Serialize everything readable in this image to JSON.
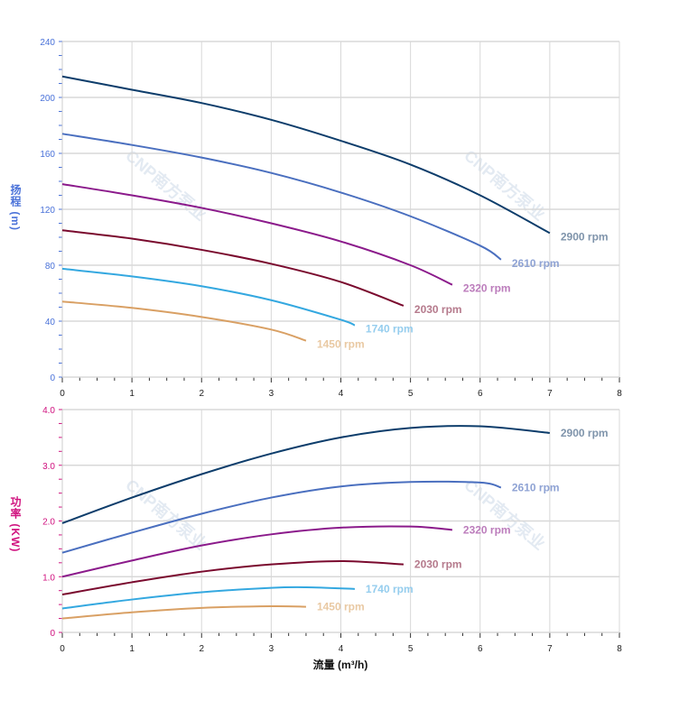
{
  "watermark": "CNP南方泵业",
  "chart_data": [
    {
      "type": "line",
      "ylabel": "扬程 (m)",
      "xlim": [
        0,
        8
      ],
      "ylim": [
        0,
        240
      ],
      "xticks": [
        "0",
        "1",
        "2",
        "3",
        "4",
        "5",
        "6",
        "7",
        "8"
      ],
      "yticks": [
        "0",
        "40",
        "80",
        "120",
        "160",
        "200",
        "240"
      ],
      "grid": true,
      "series": [
        {
          "name": "2900 rpm",
          "color": "#0d3d6b",
          "label_color": "#7f94ab",
          "x": [
            0,
            1,
            2,
            3,
            4,
            5,
            6,
            7
          ],
          "y": [
            215,
            205.5,
            196,
            184,
            169,
            152,
            130,
            103
          ]
        },
        {
          "name": "2610 rpm",
          "color": "#4a6fbf",
          "label_color": "#8fa3d4",
          "x": [
            0,
            1,
            2,
            3,
            4,
            5,
            6,
            6.3
          ],
          "y": [
            174,
            166,
            157,
            146,
            132,
            115,
            94,
            84
          ]
        },
        {
          "name": "2320 rpm",
          "color": "#8b1a8b",
          "label_color": "#bc7dbc",
          "x": [
            0,
            1,
            2,
            3,
            4,
            5,
            5.6
          ],
          "y": [
            138,
            130,
            121,
            110,
            97,
            80,
            66
          ]
        },
        {
          "name": "2030 rpm",
          "color": "#7a0a2e",
          "label_color": "#b57a8c",
          "x": [
            0,
            1,
            2,
            3,
            4,
            4.9
          ],
          "y": [
            105,
            99,
            91,
            81,
            68,
            51
          ]
        },
        {
          "name": "1740 rpm",
          "color": "#34a8e0",
          "label_color": "#95cdee",
          "x": [
            0,
            1,
            2,
            3,
            4,
            4.2
          ],
          "y": [
            77.5,
            72,
            65,
            55,
            41,
            37
          ]
        },
        {
          "name": "1450 rpm",
          "color": "#d9a064",
          "label_color": "#e9c9a3",
          "x": [
            0,
            1,
            2,
            3,
            3.5
          ],
          "y": [
            54,
            49.5,
            43,
            34,
            26
          ]
        }
      ]
    },
    {
      "type": "line",
      "ylabel": "功率 (KW)",
      "xlabel": "流量 (m³/h)",
      "xlim": [
        0,
        8
      ],
      "ylim": [
        0,
        4
      ],
      "xticks": [
        "0",
        "1",
        "2",
        "3",
        "4",
        "5",
        "6",
        "7",
        "8"
      ],
      "yticks": [
        "0",
        "1.0",
        "2.0",
        "3.0",
        "4.0"
      ],
      "grid": true,
      "series": [
        {
          "name": "2900 rpm",
          "color": "#0d3d6b",
          "label_color": "#7f94ab",
          "x": [
            0,
            1,
            2,
            3,
            4,
            5,
            6,
            7
          ],
          "y": [
            1.96,
            2.42,
            2.84,
            3.21,
            3.5,
            3.67,
            3.7,
            3.58
          ]
        },
        {
          "name": "2610 rpm",
          "color": "#4a6fbf",
          "label_color": "#8fa3d4",
          "x": [
            0,
            1,
            2,
            3,
            4,
            5,
            6,
            6.3
          ],
          "y": [
            1.43,
            1.79,
            2.13,
            2.42,
            2.62,
            2.7,
            2.69,
            2.6
          ]
        },
        {
          "name": "2320 rpm",
          "color": "#8b1a8b",
          "label_color": "#bc7dbc",
          "x": [
            0,
            1,
            2,
            3,
            4,
            5,
            5.6
          ],
          "y": [
            1.0,
            1.29,
            1.56,
            1.76,
            1.88,
            1.9,
            1.84
          ]
        },
        {
          "name": "2030 rpm",
          "color": "#7a0a2e",
          "label_color": "#b57a8c",
          "x": [
            0,
            1,
            2,
            3,
            4,
            4.9
          ],
          "y": [
            0.68,
            0.9,
            1.09,
            1.22,
            1.28,
            1.22
          ]
        },
        {
          "name": "1740 rpm",
          "color": "#34a8e0",
          "label_color": "#95cdee",
          "x": [
            0,
            1,
            2,
            3,
            3.5,
            4.2
          ],
          "y": [
            0.43,
            0.59,
            0.72,
            0.8,
            0.81,
            0.78
          ]
        },
        {
          "name": "1450 rpm",
          "color": "#d9a064",
          "label_color": "#e9c9a3",
          "x": [
            0,
            1,
            2,
            3,
            3.5
          ],
          "y": [
            0.25,
            0.36,
            0.44,
            0.47,
            0.46
          ]
        }
      ]
    }
  ],
  "axis_colors": {
    "head": "#4a72d9",
    "power": "#d0127f"
  }
}
